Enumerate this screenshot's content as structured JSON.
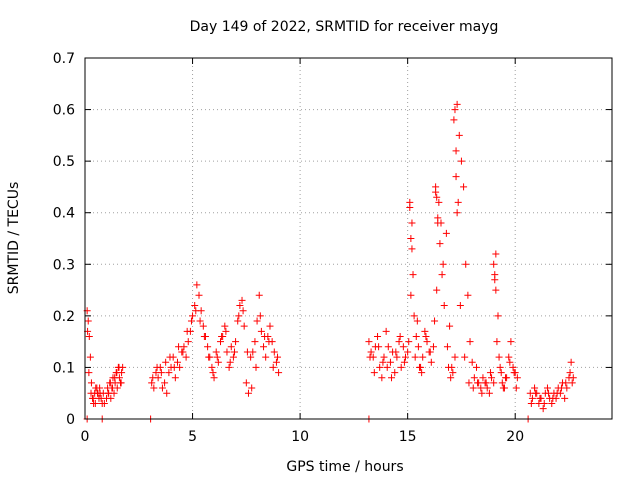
{
  "chart_data": {
    "type": "scatter",
    "title": "Day 149 of 2022, SRMTID for receiver mayg",
    "xlabel": "GPS time / hours",
    "ylabel": "SRMTID / TECUs",
    "xlim": [
      0,
      24.5
    ],
    "ylim": [
      0,
      0.7
    ],
    "xticks": [
      0,
      5,
      10,
      15,
      20
    ],
    "xtick_labels": [
      "0",
      "5",
      "10",
      "15",
      "20"
    ],
    "yticks": [
      0,
      0.1,
      0.2,
      0.3,
      0.4,
      0.5,
      0.6,
      0.7
    ],
    "ytick_labels": [
      "0",
      "0.1",
      "0.2",
      "0.3",
      "0.4",
      "0.5",
      "0.6",
      "0.7"
    ],
    "grid": true,
    "marker": "+",
    "color": "#ff0000",
    "series": [
      {
        "name": "SRMTID",
        "x": [
          0.1,
          0.15,
          0.2,
          0.25,
          0.3,
          0.35,
          0.4,
          0.45,
          0.5,
          0.55,
          0.6,
          0.65,
          0.7,
          0.75,
          0.8,
          0.85,
          0.9,
          1.0,
          1.05,
          1.1,
          1.15,
          1.2,
          1.25,
          1.3,
          1.35,
          1.4,
          1.45,
          1.5,
          1.55,
          1.6,
          1.65,
          1.7,
          1.75,
          3.1,
          3.2,
          3.3,
          3.4,
          3.5,
          3.6,
          3.7,
          3.8,
          3.9,
          4.0,
          4.1,
          4.2,
          4.3,
          4.4,
          4.5,
          4.6,
          4.7,
          4.8,
          4.9,
          5.0,
          5.1,
          5.2,
          5.3,
          5.4,
          5.5,
          5.6,
          5.7,
          5.8,
          5.9,
          6.0,
          6.1,
          6.2,
          6.3,
          6.4,
          6.5,
          6.6,
          6.7,
          6.8,
          6.9,
          7.0,
          7.1,
          7.2,
          7.3,
          7.4,
          7.5,
          7.6,
          7.7,
          7.8,
          7.9,
          8.0,
          8.1,
          8.2,
          8.3,
          8.4,
          8.5,
          8.6,
          8.7,
          8.8,
          8.9,
          9.0,
          13.2,
          13.3,
          13.4,
          13.5,
          13.6,
          13.7,
          13.8,
          13.9,
          14.0,
          14.1,
          14.2,
          14.3,
          14.4,
          14.5,
          14.6,
          14.7,
          14.8,
          14.9,
          15.0,
          15.1,
          15.2,
          15.3,
          15.4,
          15.5,
          15.6,
          15.7,
          15.8,
          15.9,
          16.0,
          16.1,
          16.2,
          16.3,
          16.4,
          16.5,
          16.6,
          16.7,
          16.8,
          16.9,
          17.0,
          17.1,
          17.2,
          17.3,
          17.4,
          17.5,
          17.6,
          17.7,
          17.8,
          17.9,
          18.0,
          18.1,
          18.2,
          18.3,
          18.4,
          18.5,
          18.6,
          18.7,
          18.8,
          18.9,
          19.0,
          19.1,
          19.2,
          19.3,
          19.4,
          19.5,
          19.6,
          19.7,
          19.8,
          19.9,
          20.0,
          20.1,
          20.7,
          20.8,
          20.9,
          21.0,
          21.1,
          21.2,
          21.3,
          21.4,
          21.5,
          21.6,
          21.7,
          21.8,
          21.9,
          22.0,
          22.1,
          22.2,
          22.3,
          22.4,
          22.5,
          22.6,
          22.7,
          0.12,
          0.18,
          0.28,
          0.38,
          0.48,
          0.58,
          0.68,
          1.08,
          1.18,
          1.28,
          1.38,
          1.48,
          1.58,
          1.68,
          3.15,
          3.35,
          3.55,
          3.75,
          3.95,
          4.15,
          4.35,
          4.55,
          4.75,
          4.95,
          5.15,
          5.35,
          5.55,
          5.75,
          5.95,
          6.15,
          6.35,
          6.55,
          6.75,
          6.95,
          7.15,
          7.35,
          7.55,
          7.75,
          7.95,
          8.15,
          8.35,
          8.55,
          8.75,
          8.95,
          13.25,
          13.45,
          13.65,
          13.85,
          14.05,
          14.25,
          14.45,
          14.65,
          14.85,
          15.05,
          15.15,
          15.25,
          15.35,
          15.45,
          15.55,
          15.65,
          15.85,
          16.05,
          16.25,
          16.35,
          16.45,
          16.55,
          16.65,
          16.85,
          16.95,
          17.05,
          17.15,
          17.25,
          17.35,
          17.45,
          17.65,
          17.85,
          18.05,
          18.25,
          18.45,
          18.65,
          18.85,
          19.05,
          19.15,
          19.25,
          19.35,
          19.45,
          19.55,
          19.75,
          19.95,
          20.05,
          20.75,
          20.95,
          21.15,
          21.35,
          21.55,
          21.75,
          21.95,
          22.15,
          22.35,
          22.55,
          22.65,
          0.1,
          0.8,
          3.05,
          13.2,
          20.6,
          17.2,
          17.25,
          17.3,
          16.3,
          16.35,
          16.4,
          15.1,
          15.15,
          15.2,
          19.0,
          19.05,
          19.1
        ],
        "y": [
          0.21,
          0.19,
          0.16,
          0.12,
          0.07,
          0.04,
          0.03,
          0.05,
          0.06,
          0.06,
          0.05,
          0.04,
          0.05,
          0.04,
          0.03,
          0.05,
          0.03,
          0.04,
          0.06,
          0.05,
          0.07,
          0.04,
          0.06,
          0.08,
          0.05,
          0.07,
          0.09,
          0.06,
          0.1,
          0.08,
          0.07,
          0.09,
          0.1,
          0.07,
          0.06,
          0.09,
          0.08,
          0.1,
          0.06,
          0.07,
          0.05,
          0.09,
          0.1,
          0.12,
          0.08,
          0.11,
          0.1,
          0.13,
          0.14,
          0.12,
          0.15,
          0.17,
          0.2,
          0.22,
          0.26,
          0.24,
          0.21,
          0.18,
          0.16,
          0.14,
          0.12,
          0.1,
          0.08,
          0.13,
          0.11,
          0.15,
          0.16,
          0.18,
          0.13,
          0.1,
          0.14,
          0.12,
          0.15,
          0.19,
          0.22,
          0.23,
          0.18,
          0.07,
          0.05,
          0.12,
          0.13,
          0.15,
          0.19,
          0.24,
          0.17,
          0.14,
          0.12,
          0.16,
          0.18,
          0.15,
          0.13,
          0.11,
          0.09,
          0.15,
          0.13,
          0.12,
          0.14,
          0.16,
          0.1,
          0.08,
          0.12,
          0.17,
          0.14,
          0.11,
          0.13,
          0.09,
          0.12,
          0.15,
          0.1,
          0.14,
          0.12,
          0.13,
          0.42,
          0.38,
          0.2,
          0.16,
          0.14,
          0.1,
          0.12,
          0.17,
          0.15,
          0.13,
          0.11,
          0.14,
          0.44,
          0.39,
          0.34,
          0.28,
          0.22,
          0.36,
          0.1,
          0.08,
          0.09,
          0.12,
          0.61,
          0.55,
          0.5,
          0.45,
          0.3,
          0.24,
          0.15,
          0.11,
          0.08,
          0.1,
          0.07,
          0.06,
          0.08,
          0.07,
          0.06,
          0.05,
          0.08,
          0.07,
          0.32,
          0.2,
          0.1,
          0.07,
          0.06,
          0.08,
          0.12,
          0.15,
          0.1,
          0.09,
          0.08,
          0.05,
          0.04,
          0.06,
          0.05,
          0.03,
          0.04,
          0.02,
          0.05,
          0.06,
          0.04,
          0.03,
          0.05,
          0.04,
          0.06,
          0.05,
          0.07,
          0.04,
          0.06,
          0.08,
          0.11,
          0.08,
          0.17,
          0.09,
          0.05,
          0.04,
          0.03,
          0.05,
          0.06,
          0.05,
          0.07,
          0.06,
          0.08,
          0.09,
          0.1,
          0.07,
          0.08,
          0.1,
          0.09,
          0.11,
          0.12,
          0.1,
          0.14,
          0.13,
          0.17,
          0.19,
          0.21,
          0.19,
          0.16,
          0.12,
          0.09,
          0.12,
          0.16,
          0.17,
          0.11,
          0.13,
          0.2,
          0.21,
          0.13,
          0.06,
          0.1,
          0.2,
          0.16,
          0.15,
          0.1,
          0.12,
          0.12,
          0.09,
          0.14,
          0.11,
          0.1,
          0.08,
          0.13,
          0.16,
          0.11,
          0.15,
          0.24,
          0.28,
          0.12,
          0.19,
          0.1,
          0.09,
          0.16,
          0.13,
          0.19,
          0.25,
          0.42,
          0.38,
          0.3,
          0.14,
          0.18,
          0.1,
          0.58,
          0.47,
          0.42,
          0.22,
          0.12,
          0.07,
          0.06,
          0.07,
          0.05,
          0.07,
          0.09,
          0.27,
          0.15,
          0.12,
          0.09,
          0.06,
          0.08,
          0.11,
          0.09,
          0.06,
          0.03,
          0.05,
          0.04,
          0.03,
          0.05,
          0.04,
          0.05,
          0.06,
          0.07,
          0.09,
          0.07,
          0.0,
          0.0,
          0.0,
          0.0,
          0.0,
          0.6,
          0.52,
          0.4,
          0.45,
          0.43,
          0.38,
          0.41,
          0.35,
          0.33,
          0.3,
          0.28,
          0.25
        ]
      }
    ]
  }
}
